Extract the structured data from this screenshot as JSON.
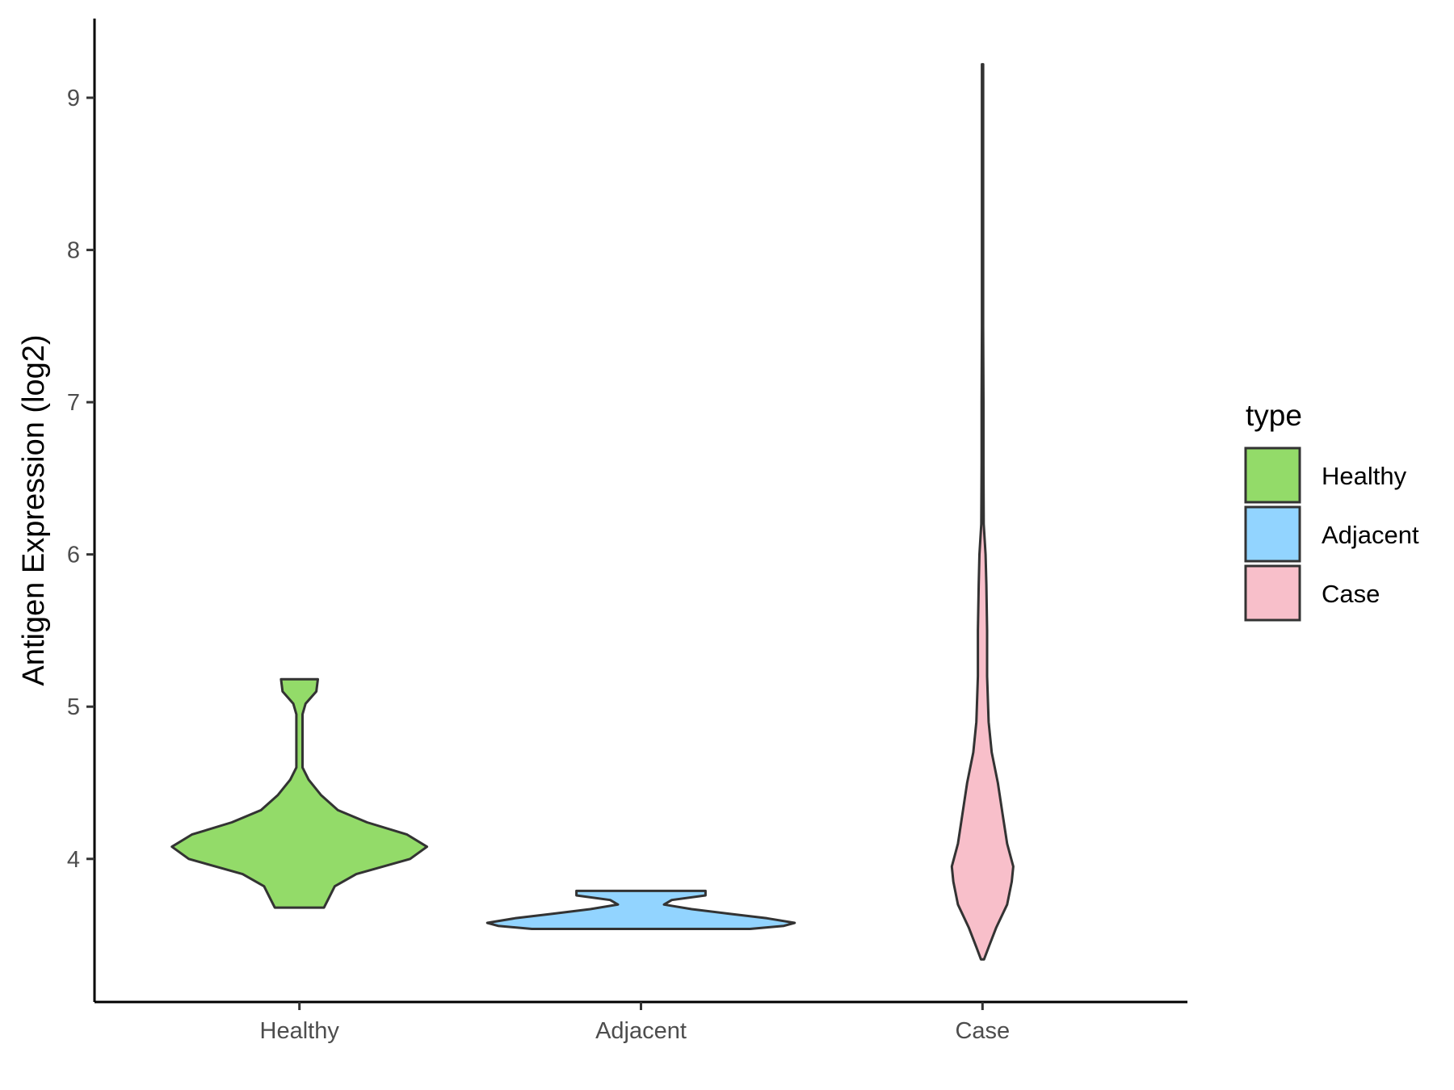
{
  "chart_data": {
    "type": "violin",
    "ylabel": "Antigen Expression (log2)",
    "xlabel": "",
    "categories": [
      "Healthy",
      "Adjacent",
      "Case"
    ],
    "y_ticks": [
      "4",
      "5",
      "6",
      "7",
      "8",
      "9"
    ],
    "ylim": [
      3.06,
      9.52
    ],
    "grid": false,
    "legend": {
      "title": "type",
      "position": "right",
      "entries": [
        {
          "label": "Healthy",
          "color": "#93DB69"
        },
        {
          "label": "Adjacent",
          "color": "#92D4FF"
        },
        {
          "label": "Case",
          "color": "#F8BFCA"
        }
      ]
    },
    "series": [
      {
        "category": "Healthy",
        "color": "#93DB69",
        "min": 3.68,
        "max": 5.18,
        "profile": [
          [
            3.68,
            0.16
          ],
          [
            3.74,
            0.19
          ],
          [
            3.82,
            0.23
          ],
          [
            3.9,
            0.37
          ],
          [
            4.0,
            0.72
          ],
          [
            4.08,
            0.83
          ],
          [
            4.16,
            0.7
          ],
          [
            4.24,
            0.44
          ],
          [
            4.32,
            0.25
          ],
          [
            4.42,
            0.14
          ],
          [
            4.52,
            0.06
          ],
          [
            4.6,
            0.02
          ],
          [
            4.75,
            0.02
          ],
          [
            4.95,
            0.02
          ],
          [
            5.02,
            0.04
          ],
          [
            5.1,
            0.11
          ],
          [
            5.18,
            0.12
          ]
        ]
      },
      {
        "category": "Adjacent",
        "color": "#92D4FF",
        "min": 3.54,
        "max": 3.79,
        "profile": [
          [
            3.54,
            0.71
          ],
          [
            3.56,
            0.93
          ],
          [
            3.58,
            1.0
          ],
          [
            3.61,
            0.82
          ],
          [
            3.64,
            0.57
          ],
          [
            3.67,
            0.33
          ],
          [
            3.7,
            0.15
          ],
          [
            3.73,
            0.2
          ],
          [
            3.76,
            0.42
          ],
          [
            3.79,
            0.42
          ]
        ]
      },
      {
        "category": "Case",
        "color": "#F8BFCA",
        "min": 3.34,
        "max": 9.22,
        "profile": [
          [
            3.34,
            0.01
          ],
          [
            3.42,
            0.04
          ],
          [
            3.55,
            0.09
          ],
          [
            3.7,
            0.16
          ],
          [
            3.85,
            0.19
          ],
          [
            3.95,
            0.2
          ],
          [
            4.1,
            0.16
          ],
          [
            4.3,
            0.13
          ],
          [
            4.5,
            0.1
          ],
          [
            4.7,
            0.06
          ],
          [
            4.9,
            0.04
          ],
          [
            5.2,
            0.03
          ],
          [
            5.5,
            0.03
          ],
          [
            5.8,
            0.025
          ],
          [
            6.0,
            0.02
          ],
          [
            6.2,
            0.008
          ],
          [
            6.6,
            0.006
          ],
          [
            7.0,
            0.006
          ],
          [
            7.5,
            0.004
          ],
          [
            8.0,
            0.004
          ],
          [
            8.5,
            0.004
          ],
          [
            9.0,
            0.004
          ],
          [
            9.22,
            0.004
          ]
        ]
      }
    ]
  }
}
